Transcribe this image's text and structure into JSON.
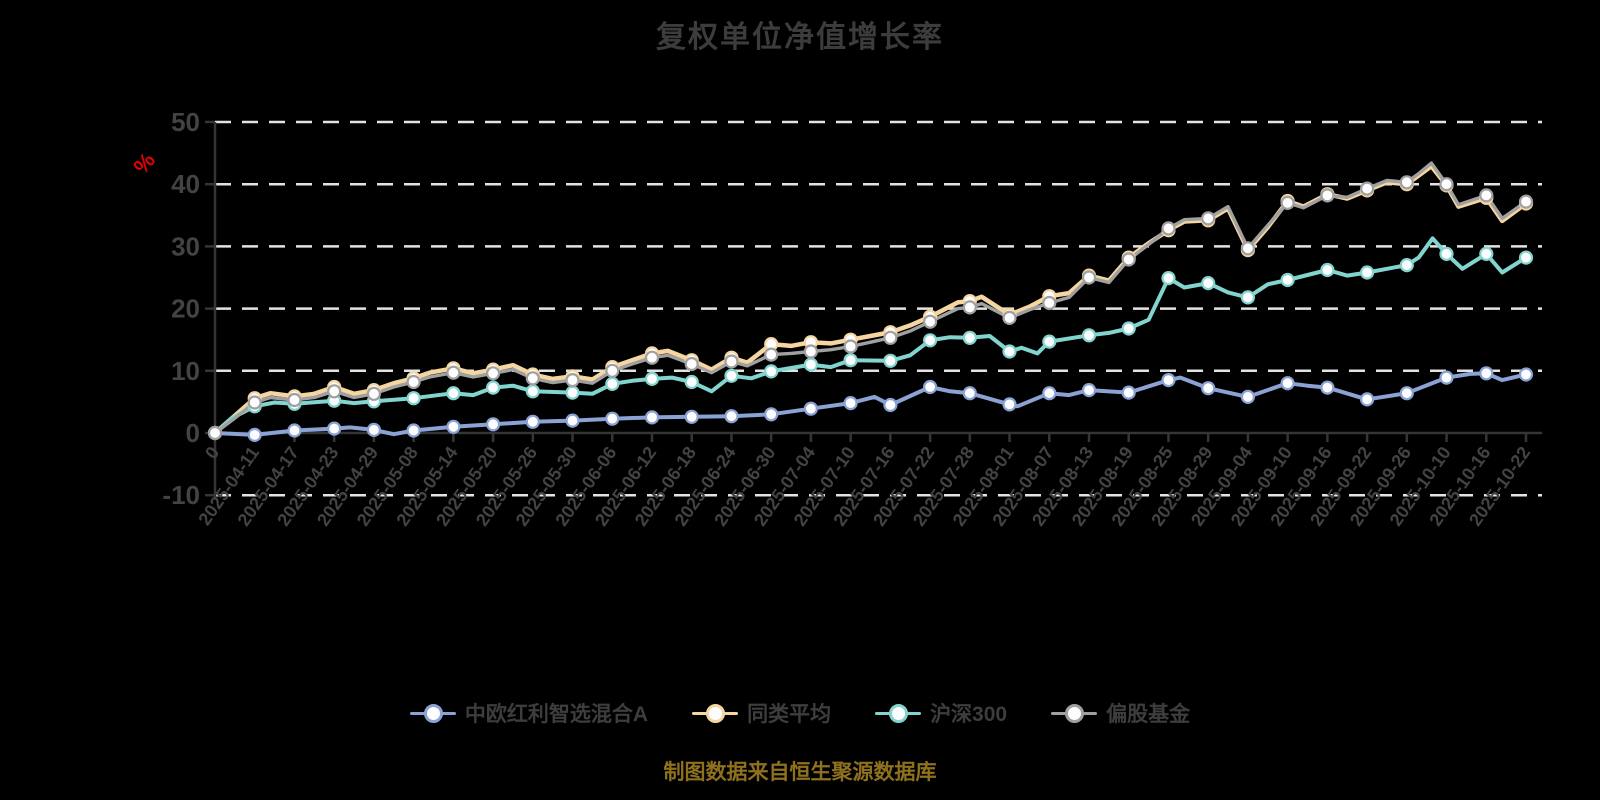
{
  "title": "复权单位净值增长率",
  "source_note": "制图数据来自恒生聚源数据库",
  "accent_colors": {
    "background": "#000000",
    "title_text": "#3c3c3c",
    "axis_text": "#434343",
    "grid_line": "#e3e3e3",
    "axis_line": "#353535",
    "percent_label": "#e60000",
    "source_text": "#8e701d",
    "marker_fill": "#fdfdff"
  },
  "chart_data": {
    "type": "line",
    "title": "复权单位净值增长率",
    "xlabel": "",
    "ylabel": "%",
    "ylim": [
      -10,
      50
    ],
    "y_ticks": [
      50,
      40,
      30,
      20,
      10,
      0,
      -10
    ],
    "grid": "horizontal-dashed",
    "legend_position": "bottom",
    "x_unit": "trading-date",
    "categories": [
      "0",
      "2025-04-11",
      "2025-04-17",
      "2025-04-23",
      "2025-04-29",
      "2025-05-08",
      "2025-05-14",
      "2025-05-20",
      "2025-05-26",
      "2025-05-30",
      "2025-06-06",
      "2025-06-12",
      "2025-06-18",
      "2025-06-24",
      "2025-06-30",
      "2025-07-04",
      "2025-07-10",
      "2025-07-16",
      "2025-07-22",
      "2025-07-28",
      "2025-08-01",
      "2025-08-07",
      "2025-08-13",
      "2025-08-19",
      "2025-08-25",
      "2025-08-29",
      "2025-09-04",
      "2025-09-10",
      "2025-09-16",
      "2025-09-22",
      "2025-09-26",
      "2025-10-10",
      "2025-10-16",
      "2025-10-22"
    ],
    "series": [
      {
        "name": "中欧红利智选混合A",
        "color": "#8aa2d4",
        "line_width": 4,
        "points": [
          [
            0,
            0
          ],
          [
            1,
            -0.3
          ],
          [
            2,
            0.4
          ],
          [
            3,
            0.7
          ],
          [
            3.4,
            0.9
          ],
          [
            4,
            0.5
          ],
          [
            4.5,
            -0.2
          ],
          [
            5,
            0.4
          ],
          [
            6,
            1.0
          ],
          [
            7,
            1.4
          ],
          [
            8,
            1.8
          ],
          [
            9,
            2.0
          ],
          [
            10,
            2.3
          ],
          [
            11,
            2.5
          ],
          [
            12,
            2.6
          ],
          [
            13,
            2.7
          ],
          [
            14,
            3.0
          ],
          [
            15,
            3.9
          ],
          [
            16,
            4.8
          ],
          [
            16.6,
            5.8
          ],
          [
            17,
            4.5
          ],
          [
            18,
            7.4
          ],
          [
            18.5,
            6.7
          ],
          [
            19,
            6.4
          ],
          [
            20,
            4.6
          ],
          [
            20.2,
            4.3
          ],
          [
            21,
            6.4
          ],
          [
            21.5,
            6.1
          ],
          [
            22,
            6.9
          ],
          [
            23,
            6.5
          ],
          [
            24,
            8.5
          ],
          [
            24.3,
            8.9
          ],
          [
            25,
            7.2
          ],
          [
            26,
            5.8
          ],
          [
            27,
            8.0
          ],
          [
            27.5,
            7.6
          ],
          [
            28,
            7.3
          ],
          [
            29,
            5.4
          ],
          [
            29.5,
            5.9
          ],
          [
            30,
            6.4
          ],
          [
            31,
            8.9
          ],
          [
            31.6,
            9.5
          ],
          [
            32,
            9.6
          ],
          [
            32.4,
            8.5
          ],
          [
            33,
            9.4
          ]
        ]
      },
      {
        "name": "同类平均",
        "color": "#f6d6a0",
        "line_width": 4.5,
        "points": [
          [
            0,
            0
          ],
          [
            0.5,
            2.8
          ],
          [
            1,
            5.6
          ],
          [
            1.4,
            6.4
          ],
          [
            2,
            5.9
          ],
          [
            2.5,
            6.3
          ],
          [
            3,
            7.4
          ],
          [
            3.5,
            6.3
          ],
          [
            4,
            6.9
          ],
          [
            4.5,
            8.0
          ],
          [
            5,
            8.8
          ],
          [
            5.4,
            9.7
          ],
          [
            6,
            10.4
          ],
          [
            6.5,
            9.6
          ],
          [
            7,
            10.2
          ],
          [
            7.5,
            10.9
          ],
          [
            8,
            9.4
          ],
          [
            8.5,
            8.7
          ],
          [
            9,
            9.1
          ],
          [
            9.5,
            8.6
          ],
          [
            10,
            10.6
          ],
          [
            10.5,
            11.7
          ],
          [
            11,
            12.8
          ],
          [
            11.4,
            13.2
          ],
          [
            12,
            11.7
          ],
          [
            12.5,
            10.2
          ],
          [
            13,
            12.1
          ],
          [
            13.4,
            11.3
          ],
          [
            14,
            14.3
          ],
          [
            14.5,
            14.0
          ],
          [
            15,
            14.6
          ],
          [
            15.5,
            14.4
          ],
          [
            16,
            15.0
          ],
          [
            16.5,
            15.6
          ],
          [
            17,
            16.2
          ],
          [
            17.5,
            17.3
          ],
          [
            18,
            18.7
          ],
          [
            18.7,
            21.0
          ],
          [
            19,
            21.2
          ],
          [
            19.3,
            21.9
          ],
          [
            20,
            19.0
          ],
          [
            20.5,
            20.3
          ],
          [
            21,
            22.0
          ],
          [
            21.5,
            22.5
          ],
          [
            22,
            25.3
          ],
          [
            22.5,
            24.5
          ],
          [
            23,
            28.2
          ],
          [
            23.5,
            30.5
          ],
          [
            24,
            32.6
          ],
          [
            24.4,
            34.0
          ],
          [
            25,
            34.2
          ],
          [
            25.5,
            36.1
          ],
          [
            26,
            29.4
          ],
          [
            26.5,
            33.1
          ],
          [
            27,
            37.3
          ],
          [
            27.4,
            36.4
          ],
          [
            28,
            38.4
          ],
          [
            28.5,
            37.7
          ],
          [
            29,
            39.0
          ],
          [
            29.5,
            40.3
          ],
          [
            30,
            40.0
          ],
          [
            30.3,
            41.4
          ],
          [
            30.62,
            42.9
          ],
          [
            31,
            39.8
          ],
          [
            31.3,
            36.4
          ],
          [
            32,
            37.8
          ],
          [
            32.4,
            34.1
          ],
          [
            33,
            36.9
          ]
        ]
      },
      {
        "name": "沪深300",
        "color": "#82d5cf",
        "line_width": 4,
        "points": [
          [
            0,
            0
          ],
          [
            0.4,
            2.3
          ],
          [
            1,
            4.3
          ],
          [
            1.5,
            4.9
          ],
          [
            2,
            4.7
          ],
          [
            3,
            5.2
          ],
          [
            3.5,
            4.8
          ],
          [
            4,
            5.1
          ],
          [
            5,
            5.6
          ],
          [
            6,
            6.4
          ],
          [
            6.5,
            6.1
          ],
          [
            7,
            7.3
          ],
          [
            7.5,
            7.6
          ],
          [
            8,
            6.7
          ],
          [
            9,
            6.5
          ],
          [
            9.5,
            6.3
          ],
          [
            10,
            7.9
          ],
          [
            10.5,
            8.4
          ],
          [
            11,
            8.7
          ],
          [
            11.5,
            8.9
          ],
          [
            12,
            8.2
          ],
          [
            12.5,
            6.7
          ],
          [
            13,
            9.2
          ],
          [
            13.5,
            8.8
          ],
          [
            14,
            9.9
          ],
          [
            15,
            11.0
          ],
          [
            15.5,
            10.6
          ],
          [
            16,
            11.7
          ],
          [
            17,
            11.6
          ],
          [
            17.5,
            12.5
          ],
          [
            18,
            14.9
          ],
          [
            18.5,
            15.4
          ],
          [
            19,
            15.3
          ],
          [
            19.5,
            15.6
          ],
          [
            20,
            13.1
          ],
          [
            20.3,
            13.7
          ],
          [
            20.7,
            12.8
          ],
          [
            21,
            14.7
          ],
          [
            22,
            15.7
          ],
          [
            22.5,
            16.1
          ],
          [
            23,
            16.8
          ],
          [
            23.5,
            18.2
          ],
          [
            24,
            24.9
          ],
          [
            24.4,
            23.4
          ],
          [
            25,
            24.1
          ],
          [
            25.5,
            22.6
          ],
          [
            26,
            21.8
          ],
          [
            26.5,
            23.9
          ],
          [
            27,
            24.6
          ],
          [
            27.5,
            25.4
          ],
          [
            28,
            26.2
          ],
          [
            28.5,
            25.3
          ],
          [
            29,
            25.8
          ],
          [
            29.5,
            26.4
          ],
          [
            30,
            27.0
          ],
          [
            30.3,
            28.2
          ],
          [
            30.65,
            31.3
          ],
          [
            31,
            28.8
          ],
          [
            31.4,
            26.4
          ],
          [
            32,
            28.8
          ],
          [
            32.4,
            25.8
          ],
          [
            33,
            28.2
          ]
        ]
      },
      {
        "name": "偏股基金",
        "color": "#a0a0a0",
        "line_width": 3.4,
        "points": [
          [
            0,
            0
          ],
          [
            0.5,
            2.4
          ],
          [
            1,
            4.9
          ],
          [
            1.4,
            5.7
          ],
          [
            2,
            5.3
          ],
          [
            2.5,
            5.7
          ],
          [
            3,
            6.7
          ],
          [
            3.5,
            5.7
          ],
          [
            4,
            6.3
          ],
          [
            4.5,
            7.4
          ],
          [
            5,
            8.2
          ],
          [
            5.4,
            9.0
          ],
          [
            6,
            9.7
          ],
          [
            6.5,
            9.0
          ],
          [
            7,
            9.6
          ],
          [
            7.5,
            10.2
          ],
          [
            8,
            8.8
          ],
          [
            8.5,
            8.1
          ],
          [
            9,
            8.5
          ],
          [
            9.5,
            8.0
          ],
          [
            10,
            10.0
          ],
          [
            10.5,
            11.1
          ],
          [
            11,
            12.1
          ],
          [
            11.4,
            12.5
          ],
          [
            12,
            11.1
          ],
          [
            12.5,
            9.7
          ],
          [
            13,
            11.5
          ],
          [
            13.4,
            10.8
          ],
          [
            14,
            12.6
          ],
          [
            14.5,
            12.8
          ],
          [
            15,
            13.1
          ],
          [
            15.5,
            13.4
          ],
          [
            16,
            13.9
          ],
          [
            16.5,
            14.6
          ],
          [
            17,
            15.3
          ],
          [
            17.5,
            16.4
          ],
          [
            18,
            17.9
          ],
          [
            18.7,
            20.0
          ],
          [
            19,
            20.2
          ],
          [
            19.3,
            20.8
          ],
          [
            20,
            18.5
          ],
          [
            20.5,
            19.8
          ],
          [
            21,
            20.9
          ],
          [
            21.5,
            21.8
          ],
          [
            22,
            25.0
          ],
          [
            22.5,
            24.2
          ],
          [
            23,
            27.9
          ],
          [
            23.5,
            30.3
          ],
          [
            24,
            32.9
          ],
          [
            24.4,
            34.3
          ],
          [
            25,
            34.5
          ],
          [
            25.5,
            36.4
          ],
          [
            26,
            29.7
          ],
          [
            26.5,
            33.4
          ],
          [
            27,
            37.0
          ],
          [
            27.4,
            36.2
          ],
          [
            28,
            38.2
          ],
          [
            28.5,
            37.9
          ],
          [
            29,
            39.3
          ],
          [
            29.5,
            40.6
          ],
          [
            30,
            40.3
          ],
          [
            30.3,
            41.7
          ],
          [
            30.62,
            43.4
          ],
          [
            31,
            40.0
          ],
          [
            31.3,
            36.7
          ],
          [
            32,
            38.2
          ],
          [
            32.4,
            34.5
          ],
          [
            33,
            37.2
          ]
        ]
      }
    ]
  }
}
